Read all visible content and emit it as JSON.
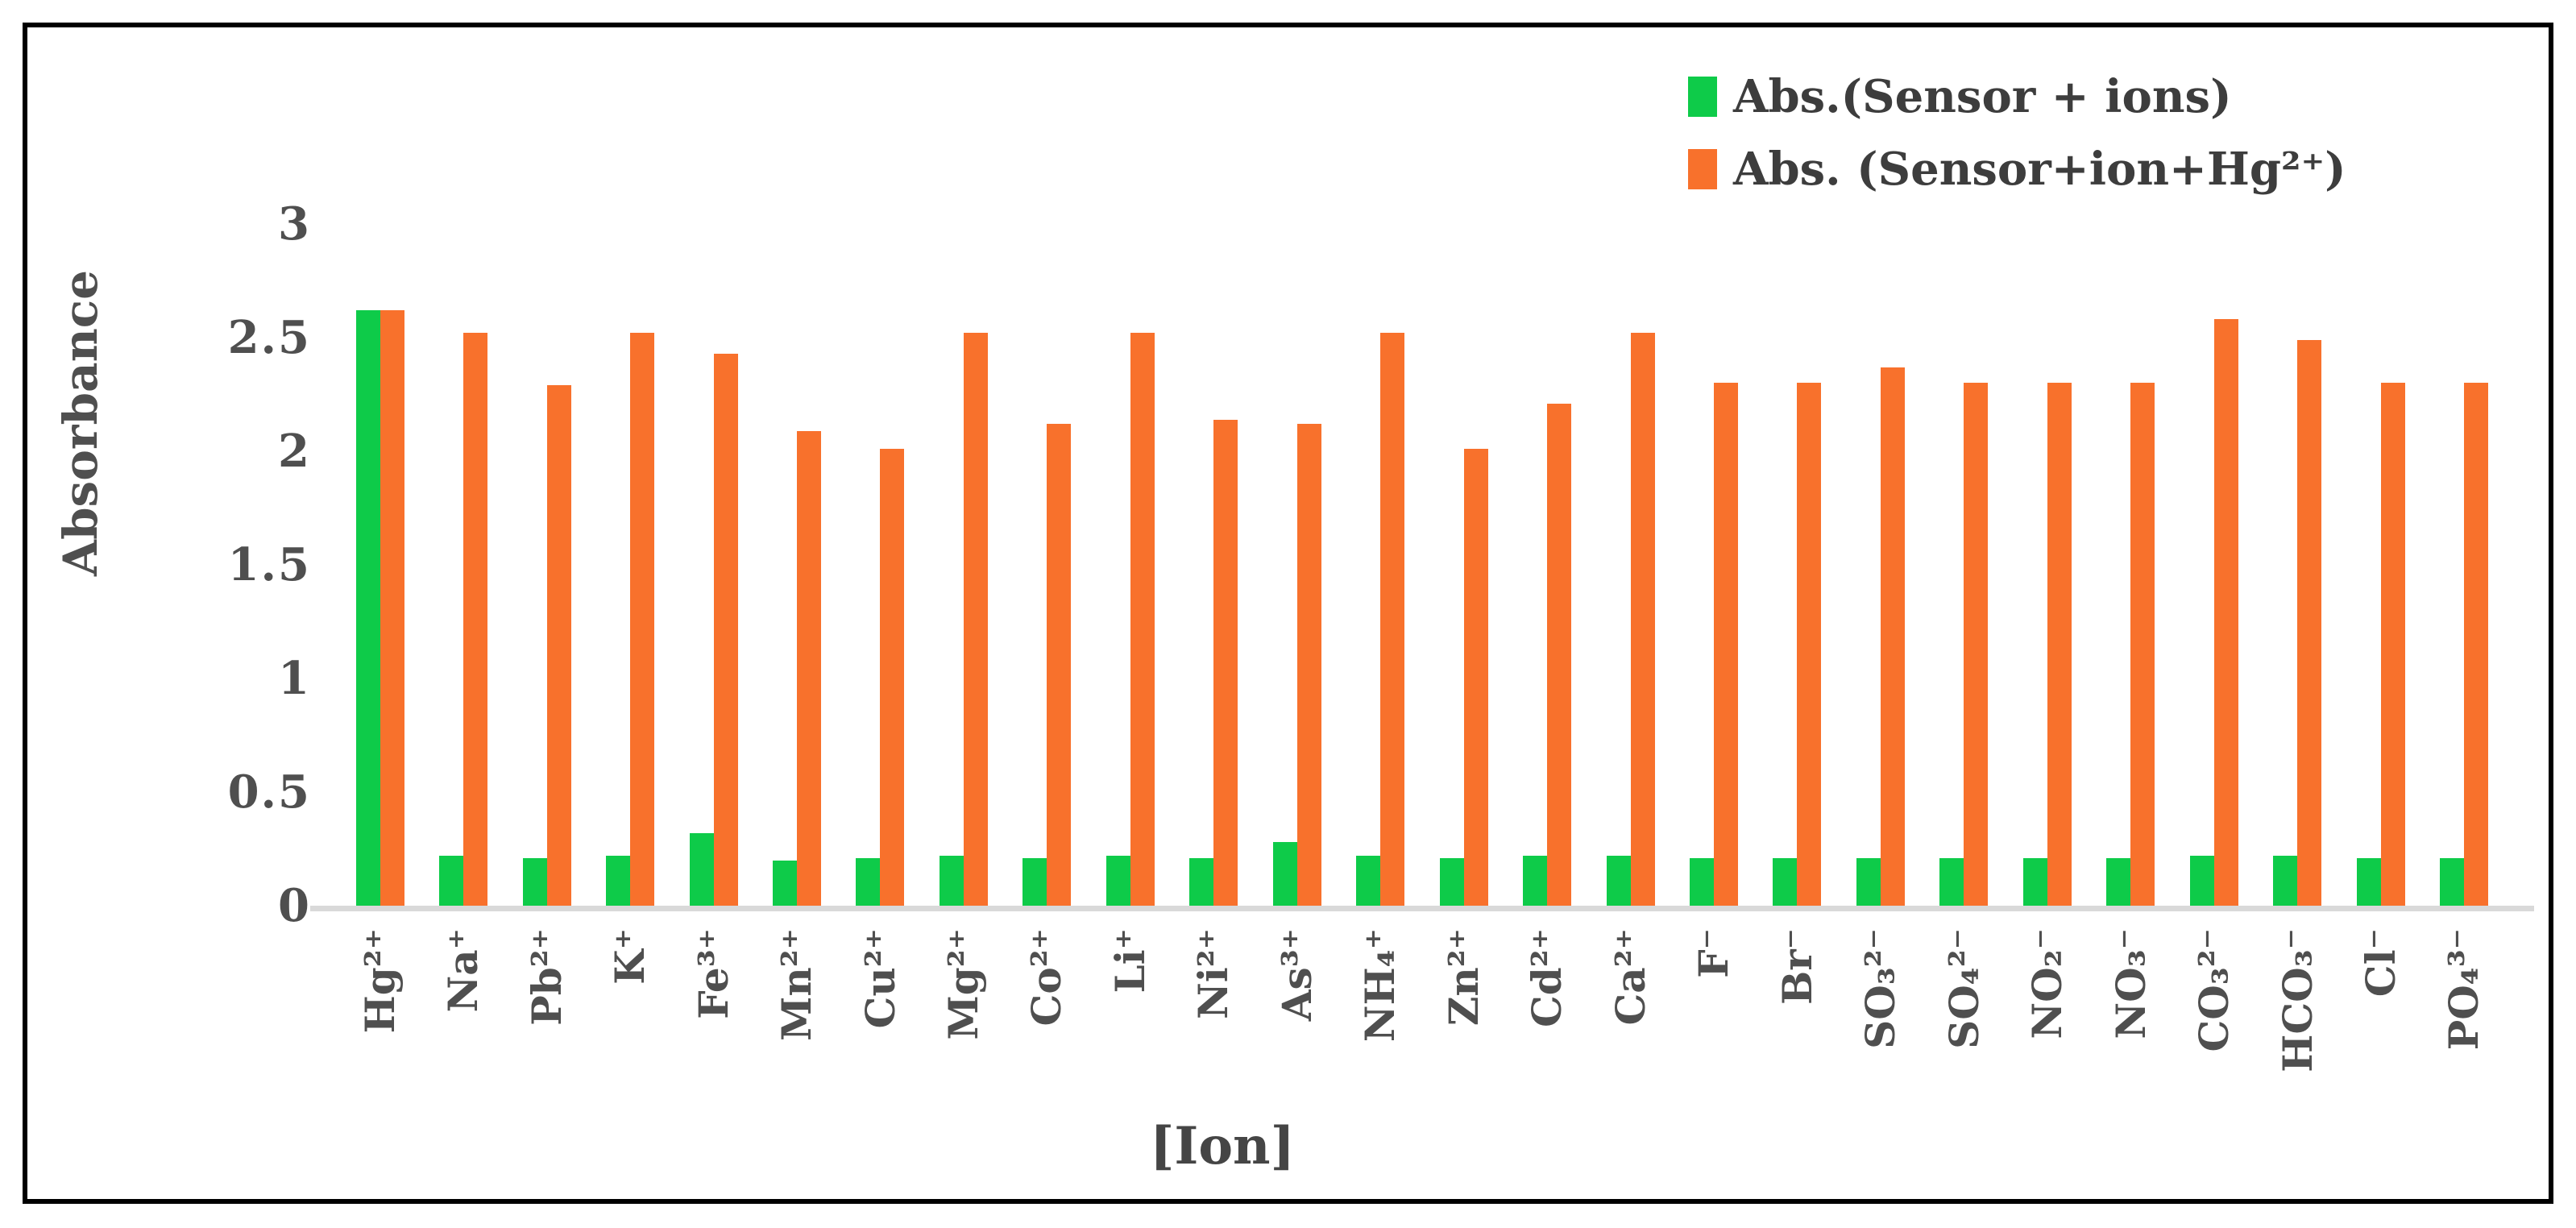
{
  "chart_data": {
    "type": "bar",
    "title": "",
    "xlabel": "[Ion]",
    "ylabel": "Absorbance",
    "ylim": [
      0,
      3
    ],
    "yticks": [
      "0",
      "0.5",
      "1",
      "1.5",
      "2",
      "2.5",
      "3"
    ],
    "ytick_values": [
      0,
      0.5,
      1,
      1.5,
      2,
      2.5,
      3
    ],
    "grid": false,
    "legend_position": "top-right",
    "categories": [
      "Hg²⁺",
      "Na⁺",
      "Pb²⁺",
      "K⁺",
      "Fe³⁺",
      "Mn²⁺",
      "Cu²⁺",
      "Mg²⁺",
      "Co²⁺",
      "Li⁺",
      "Ni²⁺",
      "As³⁺",
      "NH₄⁺",
      "Zn²⁺",
      "Cd²⁺",
      "Ca²⁺",
      "F⁻",
      "Br⁻",
      "SO₃²⁻",
      "SO₄²⁻",
      "NO₂⁻",
      "NO₃⁻",
      "CO₃²⁻",
      "HCO₃⁻",
      "Cl⁻",
      "PO₄³⁻"
    ],
    "series": [
      {
        "name": "Abs.(Sensor + ions)",
        "color": "#0ecb49",
        "values": [
          2.62,
          0.22,
          0.21,
          0.22,
          0.32,
          0.2,
          0.21,
          0.22,
          0.21,
          0.22,
          0.21,
          0.28,
          0.22,
          0.21,
          0.22,
          0.22,
          0.21,
          0.21,
          0.21,
          0.21,
          0.21,
          0.21,
          0.22,
          0.22,
          0.21,
          0.21
        ]
      },
      {
        "name": "Abs. (Sensor+ion+Hg²⁺)",
        "color": "#f8712c",
        "values": [
          2.62,
          2.52,
          2.29,
          2.52,
          2.43,
          2.09,
          2.01,
          2.52,
          2.12,
          2.52,
          2.14,
          2.12,
          2.52,
          2.01,
          2.21,
          2.52,
          2.3,
          2.3,
          2.37,
          2.3,
          2.3,
          2.3,
          2.58,
          2.49,
          2.3,
          2.3
        ]
      }
    ],
    "colors": {
      "green": "#0ecb49",
      "orange": "#f8712c",
      "axis_line": "#d9d9d9",
      "text": "#4f4f4f",
      "frame": "#000000"
    }
  }
}
